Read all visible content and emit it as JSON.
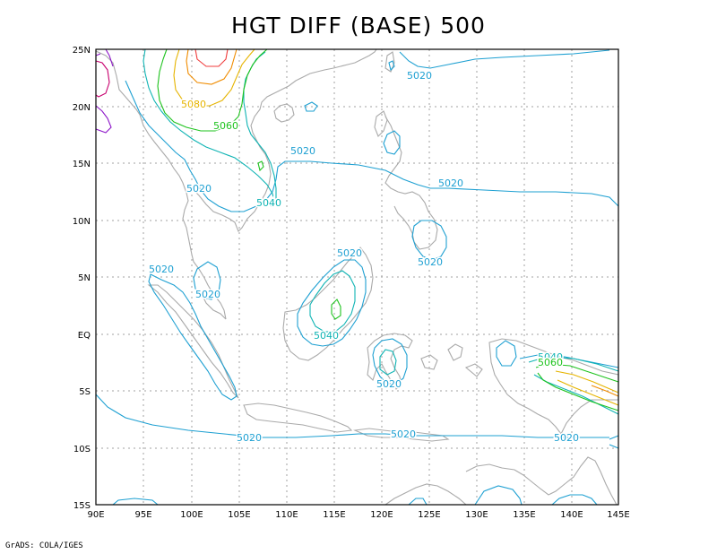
{
  "title": "HGT DIFF (BASE) 500",
  "footer": "GrADS: COLA/IGES",
  "lon_ticks": [
    "90E",
    "95E",
    "100E",
    "105E",
    "110E",
    "115E",
    "120E",
    "125E",
    "130E",
    "135E",
    "140E",
    "145E"
  ],
  "lat_ticks": [
    "25N",
    "20N",
    "15N",
    "10N",
    "5N",
    "EQ",
    "5S",
    "10S",
    "15S"
  ],
  "colors": {
    "c5020": "#1ea0d2",
    "c5040": "#10b4b4",
    "c5060": "#1ec31e",
    "c5080": "#e6b400",
    "c5100": "#f08c00",
    "c5120": "#f03c3c",
    "c5140": "#c8006e",
    "c5160": "#8c14c8",
    "coast": "#aaaaaa",
    "grid": "#a0a0a0"
  },
  "contour_labels": [
    {
      "text": "5020",
      "color": "c5020"
    },
    {
      "text": "5020",
      "color": "c5020"
    },
    {
      "text": "5020",
      "color": "c5020"
    },
    {
      "text": "5020",
      "color": "c5020"
    },
    {
      "text": "5020",
      "color": "c5020"
    },
    {
      "text": "5020",
      "color": "c5020"
    },
    {
      "text": "5020",
      "color": "c5020"
    },
    {
      "text": "5020",
      "color": "c5020"
    },
    {
      "text": "5020",
      "color": "c5020"
    },
    {
      "text": "5020",
      "color": "c5020"
    },
    {
      "text": "5020",
      "color": "c5020"
    },
    {
      "text": "5020",
      "color": "c5020"
    },
    {
      "text": "5040",
      "color": "c5040"
    },
    {
      "text": "5040",
      "color": "c5040"
    },
    {
      "text": "5040",
      "color": "c5040"
    },
    {
      "text": "5060",
      "color": "c5060"
    },
    {
      "text": "5060",
      "color": "c5060"
    },
    {
      "text": "5080",
      "color": "c5080"
    }
  ]
}
